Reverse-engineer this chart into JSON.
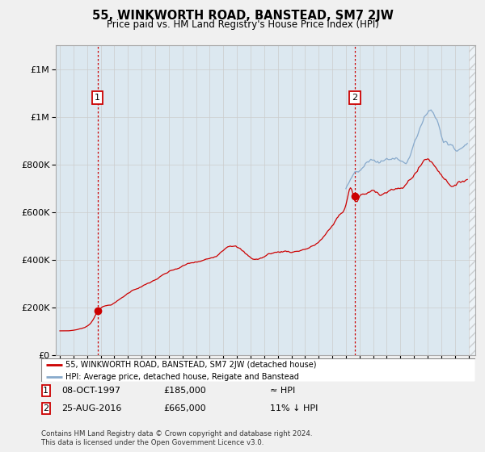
{
  "title": "55, WINKWORTH ROAD, BANSTEAD, SM7 2JW",
  "subtitle": "Price paid vs. HM Land Registry's House Price Index (HPI)",
  "ylim": [
    0,
    1300000
  ],
  "yticks": [
    0,
    200000,
    400000,
    600000,
    800000,
    1000000,
    1200000
  ],
  "xlim_start": 1994.7,
  "xlim_end": 2025.5,
  "xticks": [
    1995,
    1996,
    1997,
    1998,
    1999,
    2000,
    2001,
    2002,
    2003,
    2004,
    2005,
    2006,
    2007,
    2008,
    2009,
    2010,
    2011,
    2012,
    2013,
    2014,
    2015,
    2016,
    2017,
    2018,
    2019,
    2020,
    2021,
    2022,
    2023,
    2024,
    2025
  ],
  "sale1_x": 1997.77,
  "sale1_y": 185000,
  "sale1_label": "1",
  "sale2_x": 2016.65,
  "sale2_y": 665000,
  "sale2_label": "2",
  "line_house_color": "#cc0000",
  "line_hpi_color": "#88aacc",
  "annotation_box_color": "#cc0000",
  "dashed_line_color": "#cc0000",
  "legend_label_house": "55, WINKWORTH ROAD, BANSTEAD, SM7 2JW (detached house)",
  "legend_label_hpi": "HPI: Average price, detached house, Reigate and Banstead",
  "table_row1": [
    "1",
    "08-OCT-1997",
    "£185,000",
    "≈ HPI"
  ],
  "table_row2": [
    "2",
    "25-AUG-2016",
    "£665,000",
    "11% ↓ HPI"
  ],
  "footnote": "Contains HM Land Registry data © Crown copyright and database right 2024.\nThis data is licensed under the Open Government Licence v3.0.",
  "bg_color": "#f0f0f0",
  "plot_bg_color": "#dce8f0"
}
